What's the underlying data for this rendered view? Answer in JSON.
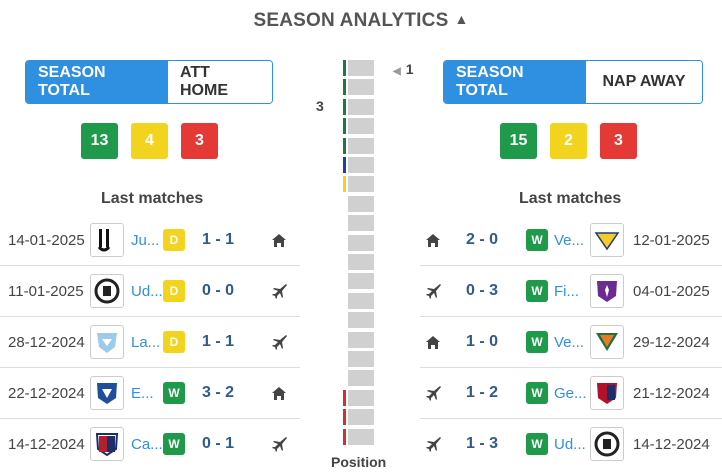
{
  "header": {
    "title": "SEASON ANALYTICS"
  },
  "left": {
    "tab_total": "SEASON TOTAL",
    "tab_side": "ATT HOME",
    "wins": "13",
    "draws": "4",
    "losses": "3",
    "last_title": "Last matches",
    "matches": [
      {
        "date": "14-01-2025",
        "team": "Ju...",
        "result": "D",
        "score": "1 - 1",
        "venue": "home",
        "logo": "juventus-logo"
      },
      {
        "date": "11-01-2025",
        "team": "Ud...",
        "result": "D",
        "score": "0 - 0",
        "venue": "away",
        "logo": "udinese-logo"
      },
      {
        "date": "28-12-2024",
        "team": "La...",
        "result": "D",
        "score": "1 - 1",
        "venue": "away",
        "logo": "lazio-logo"
      },
      {
        "date": "22-12-2024",
        "team": "E...",
        "result": "W",
        "score": "3 - 2",
        "venue": "home",
        "logo": "empoli-logo"
      },
      {
        "date": "14-12-2024",
        "team": "Ca...",
        "result": "W",
        "score": "0 - 1",
        "venue": "away",
        "logo": "cagliari-logo"
      }
    ]
  },
  "right": {
    "tab_total": "SEASON TOTAL",
    "tab_side": "NAP AWAY",
    "wins": "15",
    "draws": "2",
    "losses": "3",
    "last_title": "Last matches",
    "matches": [
      {
        "date": "12-01-2025",
        "team": "Ve...",
        "result": "W",
        "score": "2 - 0",
        "venue": "home",
        "logo": "verona-logo"
      },
      {
        "date": "04-01-2025",
        "team": "Fi...",
        "result": "W",
        "score": "0 - 3",
        "venue": "away",
        "logo": "fiorentina-logo"
      },
      {
        "date": "29-12-2024",
        "team": "Ve...",
        "result": "W",
        "score": "1 - 0",
        "venue": "home",
        "logo": "venezia-logo"
      },
      {
        "date": "21-12-2024",
        "team": "Ge...",
        "result": "W",
        "score": "1 - 2",
        "venue": "away",
        "logo": "genoa-logo"
      },
      {
        "date": "14-12-2024",
        "team": "Ud...",
        "result": "W",
        "score": "1 - 3",
        "venue": "away",
        "logo": "udinese-logo"
      }
    ]
  },
  "position": {
    "title": "Position",
    "marker_right": "1",
    "marker_left": "3",
    "slots": 20,
    "colors": {
      "green": "#1e7a3c",
      "blue": "#1a3fb0",
      "yellow": "#f2d41f",
      "red": "#d32f2f"
    }
  },
  "colors": {
    "accent": "#2f8fe0",
    "win": "#1e9a4a",
    "draw": "#f2d41f",
    "loss": "#e53935"
  }
}
